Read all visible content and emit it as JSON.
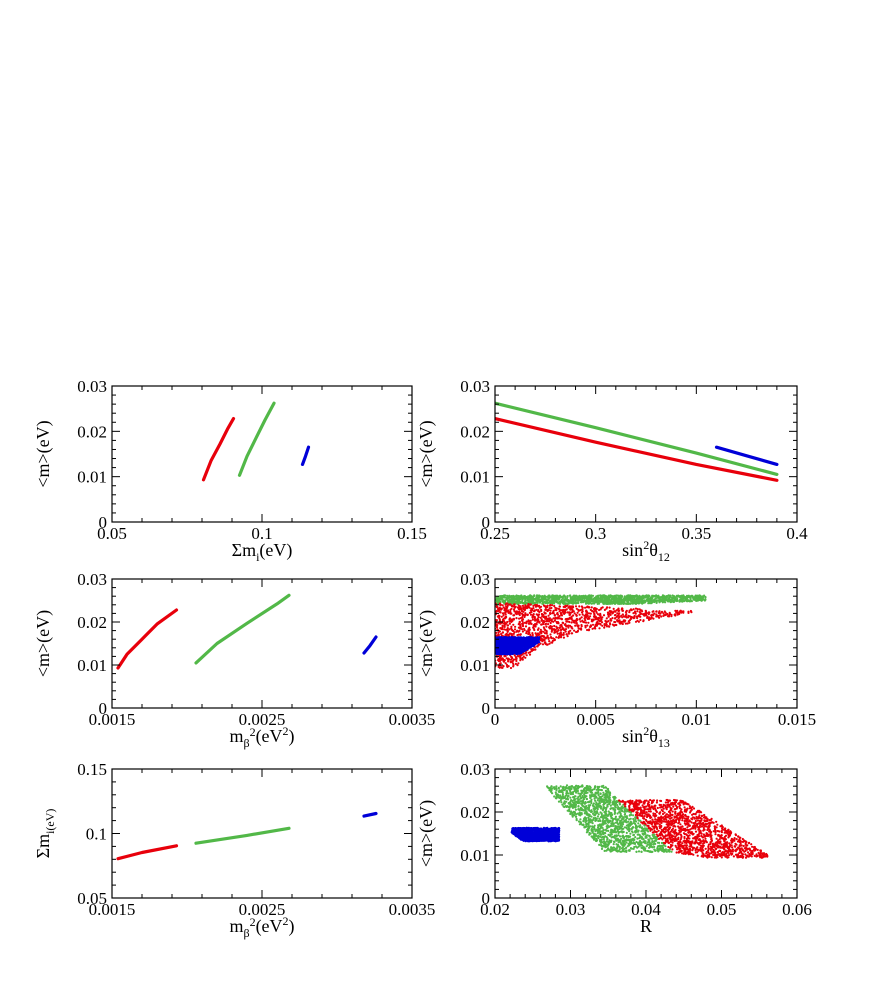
{
  "chart_data": [
    {
      "type": "line",
      "xlabel": {
        "base": "Σm",
        "sub": "i",
        "tail": "(eV)"
      },
      "ylabel": "<m>(eV)",
      "xlim": [
        0.05,
        0.15
      ],
      "ylim": [
        0,
        0.03
      ],
      "xticks": [
        "0.05",
        "0.1",
        "0.15"
      ],
      "yticks": [
        "0",
        "0.01",
        "0.02",
        "0.03"
      ],
      "series": [
        {
          "color": "#e8000b",
          "x": [
            0.0805,
            0.083,
            0.086,
            0.0885,
            0.0905
          ],
          "y": [
            0.0093,
            0.0135,
            0.0172,
            0.0205,
            0.0228
          ]
        },
        {
          "color": "#52b848",
          "x": [
            0.0925,
            0.095,
            0.098,
            0.101,
            0.104
          ],
          "y": [
            0.0103,
            0.0145,
            0.0185,
            0.0225,
            0.0262
          ]
        },
        {
          "color": "#0000d8",
          "x": [
            0.1135,
            0.1145,
            0.1155
          ],
          "y": [
            0.0127,
            0.0145,
            0.0165
          ]
        }
      ]
    },
    {
      "type": "line",
      "xlabel": {
        "base": "sin",
        "sup": "2",
        "mid": "θ",
        "sub": "12",
        "tail": ""
      },
      "ylabel": "<m>(eV)",
      "xlim": [
        0.25,
        0.4
      ],
      "ylim": [
        0,
        0.03
      ],
      "xticks": [
        "0.25",
        "0.3",
        "0.35",
        "0.4"
      ],
      "yticks": [
        "0",
        "0.01",
        "0.02",
        "0.03"
      ],
      "series": [
        {
          "color": "#e8000b",
          "x": [
            0.25,
            0.3,
            0.35,
            0.39
          ],
          "y": [
            0.0228,
            0.0176,
            0.0127,
            0.0092
          ]
        },
        {
          "color": "#52b848",
          "x": [
            0.25,
            0.3,
            0.35,
            0.39
          ],
          "y": [
            0.0262,
            0.0208,
            0.0152,
            0.0105
          ]
        },
        {
          "color": "#0000d8",
          "x": [
            0.36,
            0.375,
            0.39
          ],
          "y": [
            0.0165,
            0.0146,
            0.0127
          ]
        }
      ]
    },
    {
      "type": "line",
      "xlabel": {
        "base": "m",
        "sub": "β",
        "sup2": "2",
        "tail": "(eV",
        "sup": "2",
        "close": ")"
      },
      "ylabel": "<m>(eV)",
      "xlim": [
        0.0015,
        0.0035
      ],
      "ylim": [
        0,
        0.03
      ],
      "xticks": [
        "0.0015",
        "0.0025",
        "0.0035"
      ],
      "yticks": [
        "0",
        "0.01",
        "0.02",
        "0.03"
      ],
      "series": [
        {
          "color": "#e8000b",
          "x": [
            0.00154,
            0.0016,
            0.0017,
            0.0018,
            0.00193
          ],
          "y": [
            0.0093,
            0.0125,
            0.016,
            0.0195,
            0.0228
          ]
        },
        {
          "color": "#52b848",
          "x": [
            0.00206,
            0.0022,
            0.0024,
            0.0026,
            0.00268
          ],
          "y": [
            0.0105,
            0.015,
            0.0197,
            0.0242,
            0.0262
          ]
        },
        {
          "color": "#0000d8",
          "x": [
            0.00318,
            0.00322,
            0.00326
          ],
          "y": [
            0.0128,
            0.0145,
            0.0165
          ]
        }
      ]
    },
    {
      "type": "scatter",
      "xlabel": {
        "base": "sin",
        "sup": "2",
        "mid": "θ",
        "sub": "13",
        "tail": ""
      },
      "ylabel": "<m>(eV)",
      "xlim": [
        0,
        0.015
      ],
      "ylim": [
        0,
        0.03
      ],
      "xticks": [
        "0",
        "0.005",
        "0.01",
        "0.015"
      ],
      "yticks": [
        "0",
        "0.01",
        "0.02",
        "0.03"
      ],
      "regions": [
        {
          "color": "#52b848",
          "polygon": [
            [
              0,
              0.0242
            ],
            [
              0,
              0.0262
            ],
            [
              0.0105,
              0.0262
            ],
            [
              0.0105,
              0.025
            ],
            [
              0.007,
              0.0242
            ]
          ]
        },
        {
          "color": "#e8000b",
          "polygon": [
            [
              0,
              0.0093
            ],
            [
              0,
              0.0245
            ],
            [
              0.0103,
              0.0225
            ],
            [
              0.004,
              0.0175
            ],
            [
              0.002,
              0.0135
            ],
            [
              0.001,
              0.0093
            ]
          ]
        },
        {
          "color": "#0000d8",
          "polygon": [
            [
              0,
              0.0125
            ],
            [
              0,
              0.0165
            ],
            [
              0.0022,
              0.0165
            ],
            [
              0.0022,
              0.0152
            ],
            [
              0.0012,
              0.0125
            ]
          ]
        }
      ]
    },
    {
      "type": "line",
      "xlabel": {
        "base": "m",
        "sub": "β",
        "sup2": "2",
        "tail": "(eV",
        "sup": "2",
        "close": ")"
      },
      "ylabel": "Σm(eV)",
      "ylabel_parts": {
        "base": "Σm",
        "sub": "i(eV)"
      },
      "xlim": [
        0.0015,
        0.0035
      ],
      "ylim": [
        0.05,
        0.15
      ],
      "xticks": [
        "0.0015",
        "0.0025",
        "0.0035"
      ],
      "yticks": [
        "0.05",
        "0.1",
        "0.15"
      ],
      "series": [
        {
          "color": "#e8000b",
          "x": [
            0.00154,
            0.0017,
            0.00193
          ],
          "y": [
            0.0805,
            0.0853,
            0.0905
          ]
        },
        {
          "color": "#52b848",
          "x": [
            0.00206,
            0.0024,
            0.00268
          ],
          "y": [
            0.0925,
            0.0985,
            0.104
          ]
        },
        {
          "color": "#0000d8",
          "x": [
            0.00318,
            0.00326
          ],
          "y": [
            0.1135,
            0.1155
          ]
        }
      ]
    },
    {
      "type": "scatter",
      "xlabel": {
        "base": "R",
        "tail": ""
      },
      "ylabel": "<m>(eV)",
      "xlim": [
        0.02,
        0.06
      ],
      "ylim": [
        0,
        0.03
      ],
      "xticks": [
        "0.02",
        "0.03",
        "0.04",
        "0.05",
        "0.06"
      ],
      "yticks": [
        "0",
        "0.01",
        "0.02",
        "0.03"
      ],
      "regions": [
        {
          "color": "#0000d8",
          "polygon": [
            [
              0.0222,
              0.0163
            ],
            [
              0.0222,
              0.0152
            ],
            [
              0.0237,
              0.0132
            ],
            [
              0.0285,
              0.0132
            ],
            [
              0.0285,
              0.0163
            ]
          ]
        },
        {
          "color": "#52b848",
          "polygon": [
            [
              0.0265,
              0.0262
            ],
            [
              0.0345,
              0.0262
            ],
            [
              0.0435,
              0.0107
            ],
            [
              0.0345,
              0.0107
            ]
          ]
        },
        {
          "color": "#e8000b",
          "polygon": [
            [
              0.0362,
              0.0228
            ],
            [
              0.0448,
              0.0228
            ],
            [
              0.0568,
              0.0093
            ],
            [
              0.048,
              0.0093
            ],
            [
              0.0435,
              0.0107
            ]
          ]
        }
      ]
    }
  ]
}
